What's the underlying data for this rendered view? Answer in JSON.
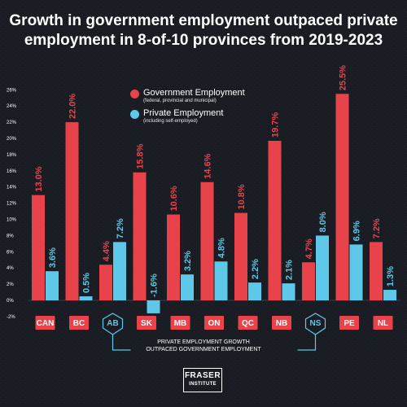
{
  "chart_data": {
    "type": "bar",
    "title": "Growth in government employment outpaced private employment in 8-of-10 provinces from 2019-2023",
    "categories": [
      "CAN",
      "BC",
      "AB",
      "SK",
      "MB",
      "ON",
      "QC",
      "NB",
      "NS",
      "PE",
      "NL"
    ],
    "highlight_categories": [
      "AB",
      "NS"
    ],
    "series": [
      {
        "name": "Government Employment",
        "subtitle": "(federal, provincial and municipal)",
        "color": "#e8434a",
        "values": [
          13.0,
          22.0,
          4.4,
          15.8,
          10.6,
          14.6,
          10.8,
          19.7,
          4.7,
          25.5,
          7.2
        ],
        "labels": [
          "13.0%",
          "22.0%",
          "4.4%",
          "15.8%",
          "10.6%",
          "14.6%",
          "10.8%",
          "19.7%",
          "4.7%",
          "25.5%",
          "7.2%"
        ]
      },
      {
        "name": "Private Employment",
        "subtitle": "(including self-employed)",
        "color": "#5ec8e8",
        "values": [
          3.6,
          0.5,
          7.2,
          -1.6,
          3.2,
          4.8,
          2.2,
          2.1,
          8.0,
          6.9,
          1.3
        ],
        "labels": [
          "3.6%",
          "0.5%",
          "7.2%",
          "-1.6%",
          "3.2%",
          "4.8%",
          "2.2%",
          "2.1%",
          "8.0%",
          "6.9%",
          "1.3%"
        ]
      }
    ],
    "yticks": [
      "-2%",
      "0%",
      "2%",
      "4%",
      "6%",
      "8%",
      "10%",
      "12%",
      "14%",
      "16%",
      "18%",
      "20%",
      "22%",
      "24%",
      "26%"
    ],
    "ylim": [
      -2,
      26
    ],
    "grid": false,
    "legend": "top-center",
    "annotation_line1": "PRIVATE EMPLOYMENT GROWTH",
    "annotation_line2": "OUTPACED GOVERNMENT EMPLOYMENT"
  },
  "logo": {
    "line1": "FRASER",
    "line2": "INSTITUTE"
  }
}
